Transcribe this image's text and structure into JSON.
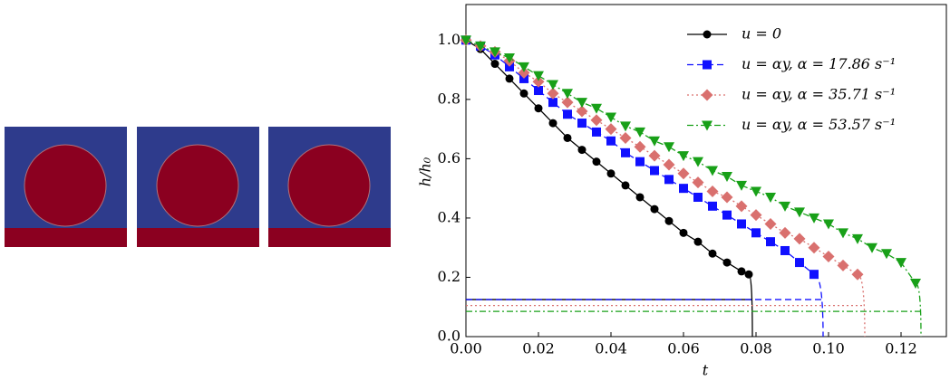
{
  "chart_data": {
    "type": "line",
    "xlabel": "t",
    "ylabel": "h/h₀",
    "xlim": [
      0,
      0.1325
    ],
    "ylim": [
      0,
      1.12
    ],
    "xticks": [
      {
        "value": 0,
        "label": "0.00"
      },
      {
        "value": 0.02,
        "label": "0.02"
      },
      {
        "value": 0.04,
        "label": "0.04"
      },
      {
        "value": 0.06,
        "label": "0.06"
      },
      {
        "value": 0.08,
        "label": "0.08"
      },
      {
        "value": 0.1,
        "label": "0.10"
      },
      {
        "value": 0.12,
        "label": "0.12"
      }
    ],
    "yticks": [
      {
        "value": 0,
        "label": "0.0"
      },
      {
        "value": 0.2,
        "label": "0.2"
      },
      {
        "value": 0.4,
        "label": "0.4"
      },
      {
        "value": 0.6,
        "label": "0.6"
      },
      {
        "value": 0.8,
        "label": "0.8"
      },
      {
        "value": 1,
        "label": "1.0"
      }
    ],
    "series": [
      {
        "name": "u = 0",
        "color": "#000000",
        "marker": "circle",
        "dash": "",
        "x": [
          0,
          0.004,
          0.008,
          0.012,
          0.016,
          0.02,
          0.024,
          0.028,
          0.032,
          0.036,
          0.04,
          0.044,
          0.048,
          0.052,
          0.056,
          0.06,
          0.064,
          0.068,
          0.072,
          0.076,
          0.078
        ],
        "values": [
          1.0,
          0.97,
          0.92,
          0.87,
          0.82,
          0.77,
          0.72,
          0.67,
          0.63,
          0.59,
          0.55,
          0.51,
          0.47,
          0.43,
          0.39,
          0.35,
          0.32,
          0.28,
          0.25,
          0.22,
          0.21
        ],
        "drop_x": 0.079,
        "baseline": 0.125
      },
      {
        "name": "u = αy, α = 17.86 s⁻¹",
        "color": "#1010ff",
        "marker": "square",
        "dash": "7 4",
        "x": [
          0,
          0.004,
          0.008,
          0.012,
          0.016,
          0.02,
          0.024,
          0.028,
          0.032,
          0.036,
          0.04,
          0.044,
          0.048,
          0.052,
          0.056,
          0.06,
          0.064,
          0.068,
          0.072,
          0.076,
          0.08,
          0.084,
          0.088,
          0.092,
          0.096
        ],
        "values": [
          1.0,
          0.98,
          0.95,
          0.91,
          0.87,
          0.83,
          0.79,
          0.75,
          0.72,
          0.69,
          0.66,
          0.62,
          0.59,
          0.56,
          0.53,
          0.5,
          0.47,
          0.44,
          0.41,
          0.38,
          0.35,
          0.32,
          0.29,
          0.25,
          0.21
        ],
        "drop_x": 0.0985,
        "baseline": 0.125
      },
      {
        "name": "u = αy, α = 35.71 s⁻¹",
        "color": "#d9706e",
        "marker": "diamond",
        "dash": "2 3",
        "x": [
          0,
          0.004,
          0.008,
          0.012,
          0.016,
          0.02,
          0.024,
          0.028,
          0.032,
          0.036,
          0.04,
          0.044,
          0.048,
          0.052,
          0.056,
          0.06,
          0.064,
          0.068,
          0.072,
          0.076,
          0.08,
          0.084,
          0.088,
          0.092,
          0.096,
          0.1,
          0.104,
          0.108
        ],
        "values": [
          1.0,
          0.98,
          0.96,
          0.93,
          0.89,
          0.86,
          0.82,
          0.79,
          0.76,
          0.73,
          0.7,
          0.67,
          0.64,
          0.61,
          0.58,
          0.55,
          0.52,
          0.49,
          0.47,
          0.44,
          0.41,
          0.38,
          0.35,
          0.33,
          0.3,
          0.27,
          0.24,
          0.21
        ],
        "drop_x": 0.11,
        "baseline": 0.105
      },
      {
        "name": "u = αy, α = 53.57 s⁻¹",
        "color": "#18a018",
        "marker": "triangle",
        "dash": "7 3 2 3",
        "x": [
          0,
          0.004,
          0.008,
          0.012,
          0.016,
          0.02,
          0.024,
          0.028,
          0.032,
          0.036,
          0.04,
          0.044,
          0.048,
          0.052,
          0.056,
          0.06,
          0.064,
          0.068,
          0.072,
          0.076,
          0.08,
          0.084,
          0.088,
          0.092,
          0.096,
          0.1,
          0.104,
          0.108,
          0.112,
          0.116,
          0.12,
          0.124
        ],
        "values": [
          1.0,
          0.98,
          0.96,
          0.94,
          0.91,
          0.88,
          0.85,
          0.82,
          0.79,
          0.77,
          0.74,
          0.71,
          0.69,
          0.66,
          0.64,
          0.61,
          0.59,
          0.56,
          0.54,
          0.51,
          0.49,
          0.47,
          0.44,
          0.42,
          0.4,
          0.38,
          0.35,
          0.33,
          0.3,
          0.28,
          0.25,
          0.18
        ],
        "drop_x": 0.1255,
        "baseline": 0.085
      }
    ]
  }
}
